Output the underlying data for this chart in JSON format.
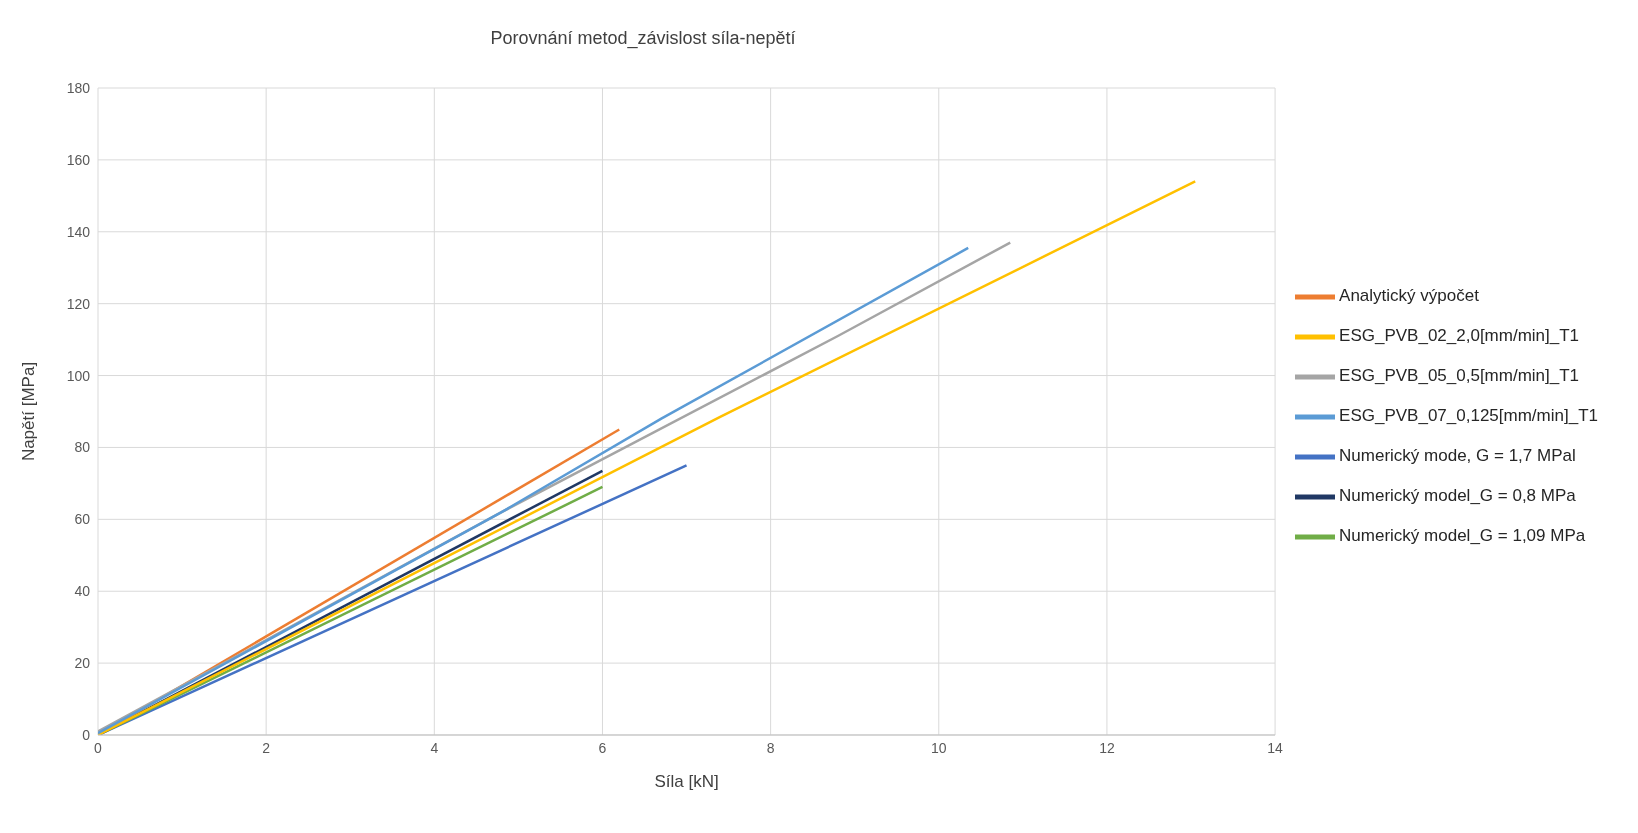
{
  "chart_data": {
    "type": "line",
    "title": "Porovnání metod_závislost síla-nepětí",
    "xlabel": "Síla [kN]",
    "ylabel": "Napětí [MPa]",
    "xlim": [
      0,
      14
    ],
    "xticks": [
      0,
      2,
      4,
      6,
      8,
      10,
      12,
      14
    ],
    "ylim": [
      0,
      180
    ],
    "yticks": [
      0,
      20,
      40,
      60,
      80,
      100,
      120,
      140,
      160,
      180
    ],
    "grid": true,
    "legend": "right",
    "marker": "none",
    "line_style": "solid",
    "series": [
      {
        "name": "Numerický mode, G = 1,7 MPal",
        "color": "#4472c4",
        "x": [
          0,
          7
        ],
        "values": [
          0,
          75
        ]
      },
      {
        "name": "Numerický model_G = 1,09 MPa",
        "color": "#70ad47",
        "x": [
          0,
          6
        ],
        "values": [
          0,
          69
        ]
      },
      {
        "name": "Numerický model_G = 0,8 MPa",
        "color": "#203864",
        "x": [
          0,
          6
        ],
        "values": [
          0,
          73.5
        ]
      },
      {
        "name": "Analytický výpočet",
        "color": "#ed7d31",
        "x": [
          0,
          6.2
        ],
        "values": [
          0,
          85
        ]
      },
      {
        "name": "ESG_PVB_02_2,0[mm/min]_T1",
        "color": "#ffc000",
        "x": [
          0,
          7.4,
          13.05
        ],
        "values": [
          0,
          88.5,
          154
        ]
      },
      {
        "name": "ESG_PVB_05_0,5[mm/min]_T1",
        "color": "#a5a5a5",
        "x": [
          0,
          4.8,
          8.8,
          10.85
        ],
        "values": [
          1,
          62,
          111,
          137
        ]
      },
      {
        "name": "ESG_PVB_07_0,125[mm/min]_T1",
        "color": "#5b9bd5",
        "x": [
          0,
          4.8,
          6.7,
          10.35
        ],
        "values": [
          0.5,
          62,
          88,
          135.5
        ]
      }
    ]
  }
}
